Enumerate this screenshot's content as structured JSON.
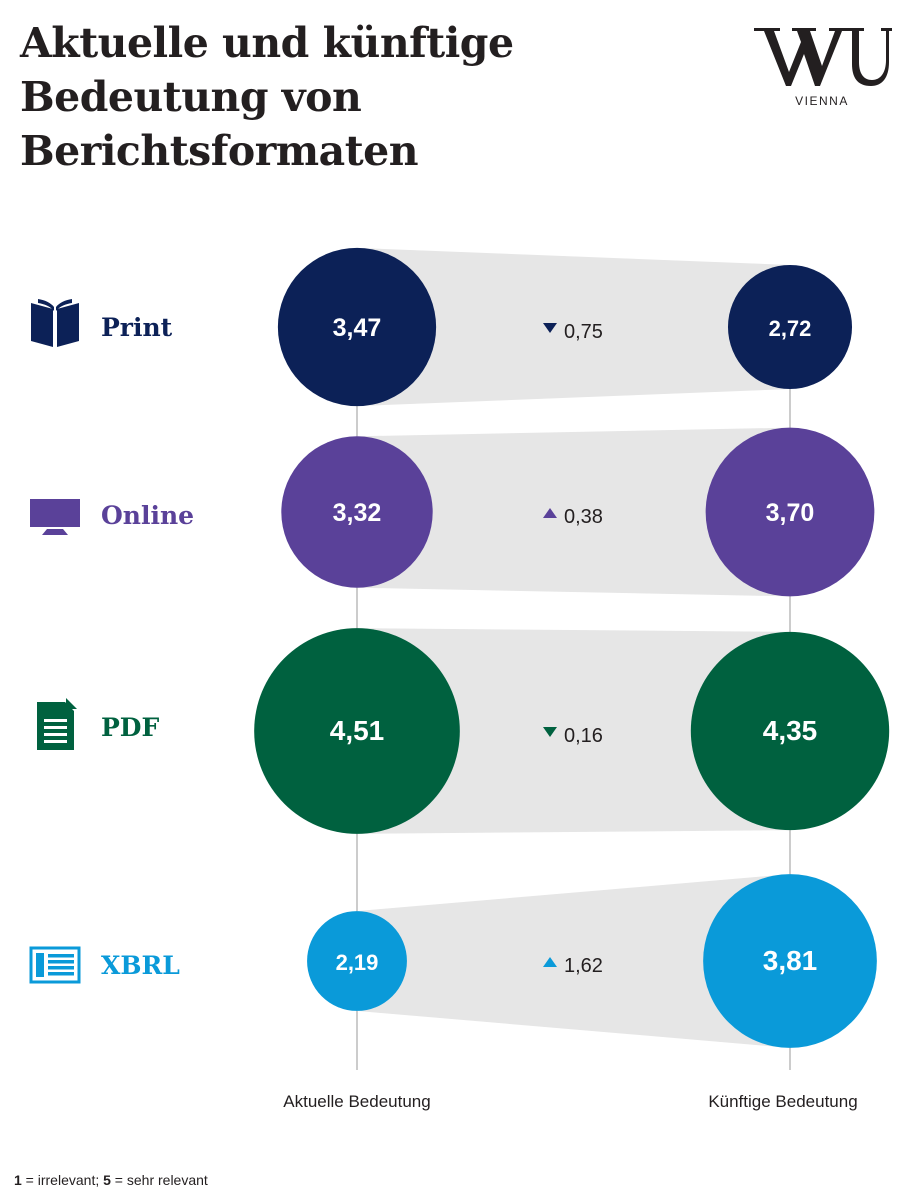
{
  "title_lines": [
    "Aktuelle und künftige",
    "Bedeutung von",
    "Berichtsformaten"
  ],
  "logo": {
    "mark_icon": "wu-logo-icon",
    "sub": "VIENNA"
  },
  "footnote": {
    "k1": "1",
    "v1": " = irrelevant; ",
    "k2": "5",
    "v2": " = sehr relevant"
  },
  "chart_data": {
    "type": "scatter",
    "title": "Aktuelle und künftige Bedeutung von Berichtsformaten",
    "xlabel": "",
    "ylabel": "",
    "columns": [
      "Aktuelle Bedeutung",
      "Künftige Bedeutung"
    ],
    "categories": [
      "Print",
      "Online",
      "PDF",
      "XBRL"
    ],
    "series": [
      {
        "name": "Aktuelle Bedeutung",
        "values": [
          3.47,
          3.32,
          4.51,
          2.19
        ]
      },
      {
        "name": "Künftige Bedeutung",
        "values": [
          2.72,
          3.7,
          4.35,
          3.81
        ]
      }
    ],
    "value_labels_current": [
      "3,47",
      "3,32",
      "4,51",
      "2,19"
    ],
    "value_labels_future": [
      "2,72",
      "3,70",
      "4,35",
      "3,81"
    ],
    "change_labels": [
      "0,75",
      "0,38",
      "0,16",
      "1,62"
    ],
    "change_direction": [
      "down",
      "up",
      "down",
      "up"
    ],
    "change_values": [
      -0.75,
      0.38,
      -0.16,
      1.62
    ],
    "colors": [
      "#0c2157",
      "#5a4199",
      "#00613f",
      "#0a9ad9"
    ],
    "icons": [
      "book-icon",
      "monitor-icon",
      "document-icon",
      "list-icon"
    ],
    "band_color": "#e6e6e6",
    "scale_range": [
      1,
      5
    ]
  }
}
